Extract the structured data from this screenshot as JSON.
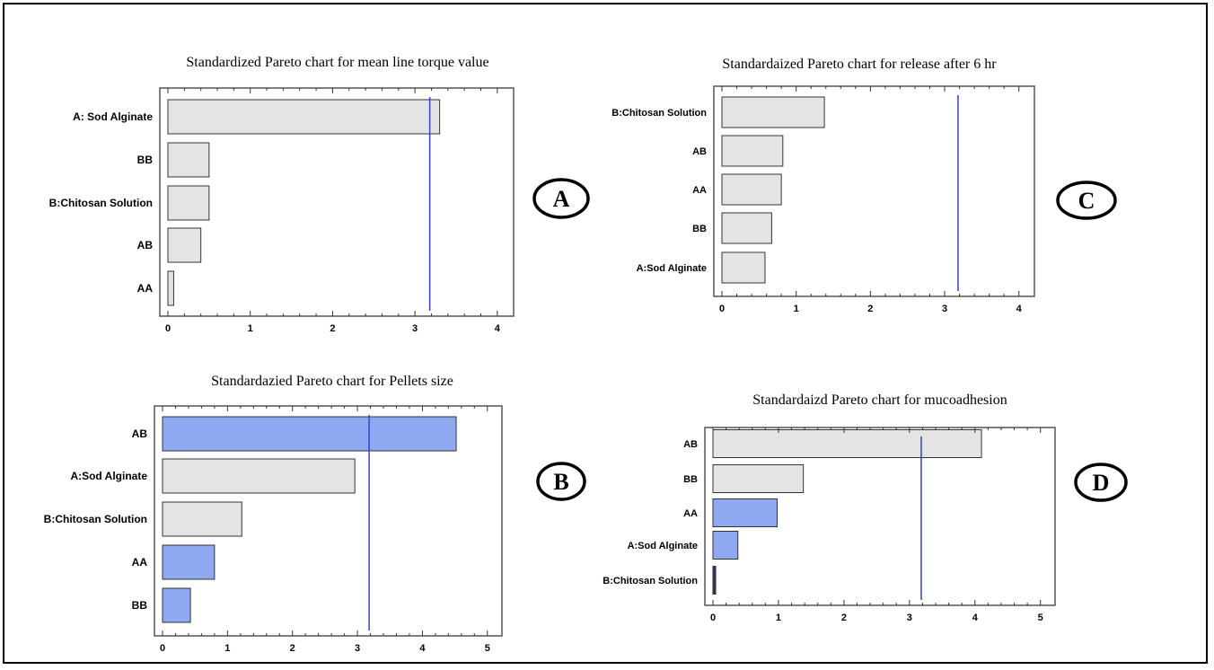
{
  "chart_data": [
    {
      "id": "A",
      "type": "bar",
      "orientation": "horizontal",
      "title": "Standardized Pareto chart for mean line torque value",
      "categories": [
        "A: Sod Alginate",
        "BB",
        "B:Chitosan Solution",
        "AB",
        "AA"
      ],
      "values": [
        3.3,
        0.5,
        0.5,
        0.4,
        0.07
      ],
      "colors": [
        "#e4e4e4",
        "#e4e4e4",
        "#e4e4e4",
        "#e4e4e4",
        "#e4e4e4"
      ],
      "xlim": [
        0,
        4.1
      ],
      "xticks": [
        0,
        1,
        2,
        3,
        4
      ],
      "threshold": 3.18,
      "panel_label": "A"
    },
    {
      "id": "C",
      "type": "bar",
      "orientation": "horizontal",
      "title": "Standardaized Pareto chart for  release after 6 hr",
      "categories": [
        "B:Chitosan Solution",
        "AB",
        "AA",
        "BB",
        "A:Sod Alginate"
      ],
      "values": [
        1.38,
        0.82,
        0.8,
        0.67,
        0.58
      ],
      "colors": [
        "#e4e4e4",
        "#e4e4e4",
        "#e4e4e4",
        "#e4e4e4",
        "#e4e4e4"
      ],
      "xlim": [
        0,
        4.1
      ],
      "xticks": [
        0,
        1,
        2,
        3,
        4
      ],
      "threshold": 3.18,
      "panel_label": "C"
    },
    {
      "id": "B",
      "type": "bar",
      "orientation": "horizontal",
      "title": "Standardazied Pareto chart for Pellets size",
      "categories": [
        "AB",
        "A:Sod Alginate",
        "B:Chitosan Solution",
        "AA",
        "BB"
      ],
      "values": [
        4.52,
        2.96,
        1.22,
        0.8,
        0.43
      ],
      "colors": [
        "#8fa8f2",
        "#e4e4e4",
        "#e4e4e4",
        "#8fa8f2",
        "#8fa8f2"
      ],
      "xlim": [
        0,
        5.1
      ],
      "xticks": [
        0,
        1,
        2,
        3,
        4,
        5
      ],
      "threshold": 3.18,
      "panel_label": "B"
    },
    {
      "id": "D",
      "type": "bar",
      "orientation": "horizontal",
      "title": "Standardaizd Pareto chart  for mucoadhesion",
      "categories": [
        "AB",
        "BB",
        "AA",
        "A:Sod Alginate",
        "B:Chitosan Solution"
      ],
      "values": [
        4.1,
        1.38,
        0.98,
        0.38,
        0.04
      ],
      "colors": [
        "#e4e4e4",
        "#e4e4e4",
        "#8fa8f2",
        "#8fa8f2",
        "#2b3560"
      ],
      "xlim": [
        0,
        5.1
      ],
      "xticks": [
        0,
        1,
        2,
        3,
        4,
        5
      ],
      "threshold": 3.18,
      "panel_label": "D"
    }
  ]
}
